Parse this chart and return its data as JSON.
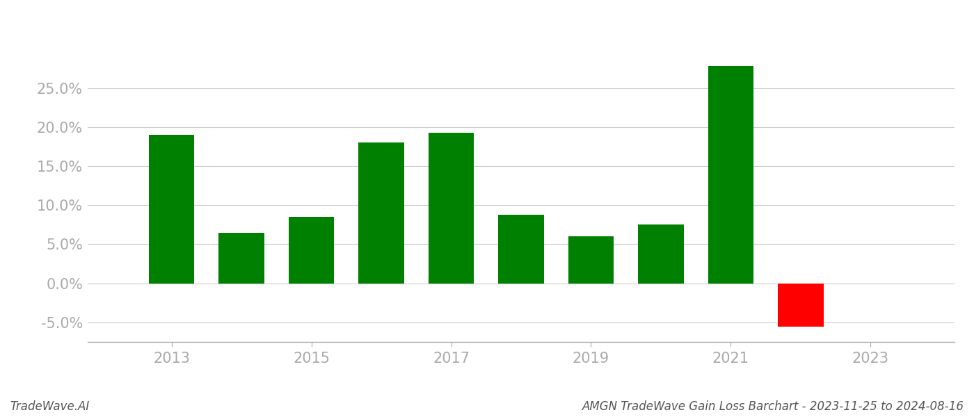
{
  "years": [
    2013,
    2014,
    2015,
    2016,
    2017,
    2018,
    2019,
    2020,
    2021,
    2022
  ],
  "values": [
    0.19,
    0.065,
    0.085,
    0.18,
    0.193,
    0.088,
    0.06,
    0.075,
    0.278,
    -0.055
  ],
  "bar_colors": [
    "#008000",
    "#008000",
    "#008000",
    "#008000",
    "#008000",
    "#008000",
    "#008000",
    "#008000",
    "#008000",
    "#ff0000"
  ],
  "ylim": [
    -0.075,
    0.32
  ],
  "yticks": [
    -0.05,
    0.0,
    0.05,
    0.1,
    0.15,
    0.2,
    0.25
  ],
  "xticks": [
    2013,
    2015,
    2017,
    2019,
    2021,
    2023
  ],
  "footer_left": "TradeWave.AI",
  "footer_right": "AMGN TradeWave Gain Loss Barchart - 2023-11-25 to 2024-08-16",
  "bar_width": 0.65,
  "background_color": "#ffffff",
  "grid_color": "#cccccc",
  "tick_color": "#aaaaaa",
  "spine_color": "#aaaaaa",
  "footer_fontsize": 12,
  "tick_fontsize": 15,
  "xlim": [
    2011.8,
    2024.2
  ]
}
